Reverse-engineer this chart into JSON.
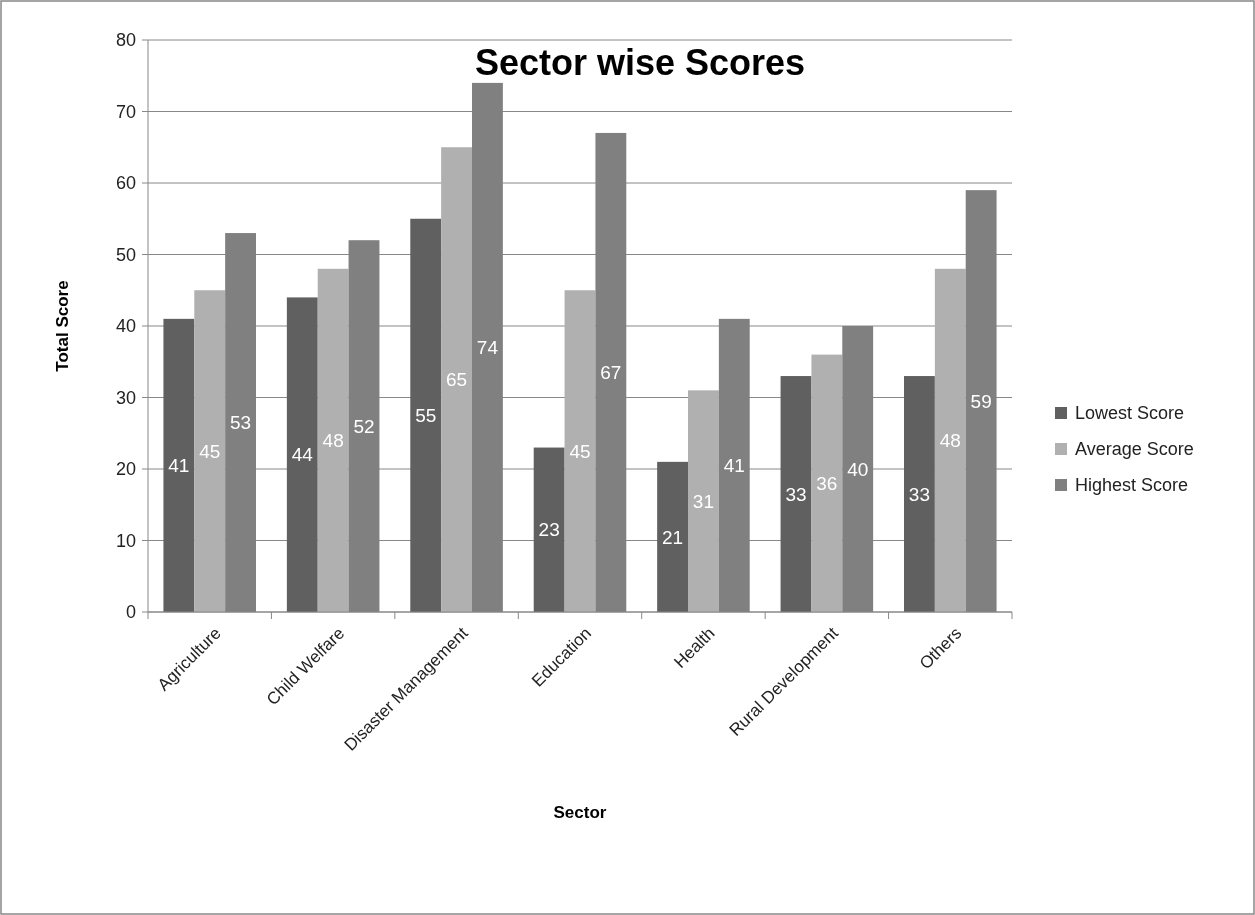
{
  "chart_data": {
    "type": "bar",
    "title": "Sector wise Scores",
    "xlabel": "Sector",
    "ylabel": "Total Score",
    "categories": [
      "Agriculture",
      "Child Welfare",
      "Disaster Management",
      "Education",
      "Health",
      "Rural Development",
      "Others"
    ],
    "series": [
      {
        "name": "Lowest Score",
        "color": "#606060",
        "values": [
          41,
          44,
          55,
          23,
          21,
          33,
          33
        ]
      },
      {
        "name": "Average Score",
        "color": "#b0b0b0",
        "values": [
          45,
          48,
          65,
          45,
          31,
          36,
          48
        ]
      },
      {
        "name": "Highest Score",
        "color": "#808080",
        "values": [
          53,
          52,
          74,
          67,
          41,
          40,
          59
        ]
      }
    ],
    "ylim": [
      0,
      80
    ],
    "yticks": [
      0,
      10,
      20,
      30,
      40,
      50,
      60,
      70,
      80
    ],
    "grid": "y",
    "legend": "right",
    "data_labels": true
  }
}
